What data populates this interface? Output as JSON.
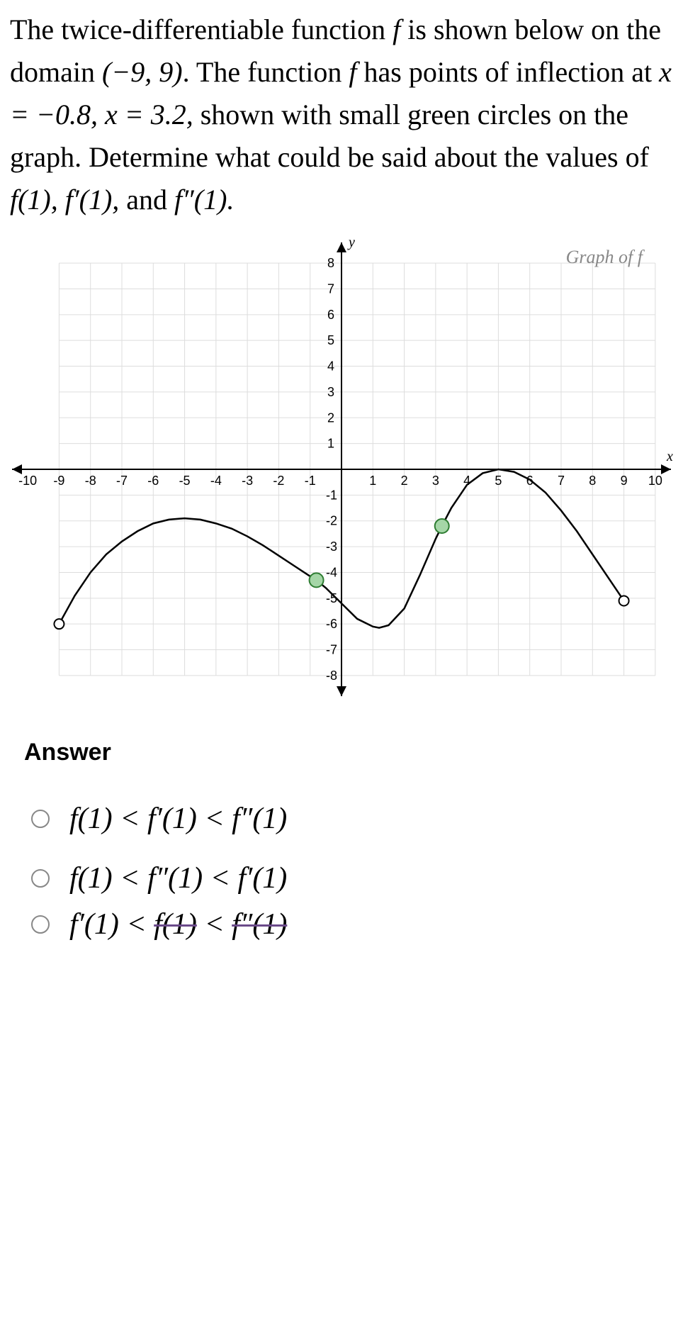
{
  "problem": {
    "line1_pre": "The twice-differentiable function ",
    "line1_f": "f",
    "line1_post": " is shown below on the domain ",
    "domain": "(−9, 9)",
    "line2_pre": ". The function ",
    "line2_f": "f",
    "line2_post": " has points of inflection at ",
    "eq1": "x = −0.8, x = 3.2,",
    "line3": " shown with small green circles on the graph. Determine what could be said about the values of ",
    "vals": "f(1), f′(1),",
    "and": " and ",
    "val3": "f″(1)."
  },
  "graph": {
    "label": "Graph of  f",
    "axis_y_label": "y",
    "axis_x_label": "x",
    "x_ticks": [
      -10,
      -9,
      -8,
      -7,
      -6,
      -5,
      -4,
      -3,
      -2,
      -1,
      1,
      2,
      3,
      4,
      5,
      6,
      7,
      8,
      9,
      10
    ],
    "y_ticks_pos": [
      1,
      2,
      3,
      4,
      5,
      6,
      7,
      8
    ],
    "y_ticks_neg": [
      -1,
      -2,
      -3,
      -4,
      -5,
      -6,
      -7,
      -8
    ],
    "x_range": [
      -10.5,
      10.5
    ],
    "y_range": [
      -8.8,
      8.8
    ],
    "grid_x_min": -9,
    "grid_x_max": 10,
    "grid_y_min": -8,
    "grid_y_max": 8,
    "grid_color": "#dddddd",
    "axis_color": "#000000",
    "bg_color": "#ffffff",
    "curve_color": "#000000",
    "curve_width": 2.5,
    "curve_points": [
      [
        -9,
        -6
      ],
      [
        -8.5,
        -4.9
      ],
      [
        -8,
        -4
      ],
      [
        -7.5,
        -3.3
      ],
      [
        -7,
        -2.8
      ],
      [
        -6.5,
        -2.4
      ],
      [
        -6,
        -2.1
      ],
      [
        -5.5,
        -1.95
      ],
      [
        -5,
        -1.9
      ],
      [
        -4.5,
        -1.95
      ],
      [
        -4,
        -2.1
      ],
      [
        -3.5,
        -2.3
      ],
      [
        -3,
        -2.6
      ],
      [
        -2.5,
        -2.95
      ],
      [
        -2,
        -3.35
      ],
      [
        -1.5,
        -3.75
      ],
      [
        -1,
        -4.15
      ],
      [
        -0.8,
        -4.3
      ],
      [
        -0.5,
        -4.6
      ],
      [
        0,
        -5.2
      ],
      [
        0.5,
        -5.8
      ],
      [
        1,
        -6.1
      ],
      [
        1.2,
        -6.15
      ],
      [
        1.5,
        -6.05
      ],
      [
        2,
        -5.4
      ],
      [
        2.5,
        -4.1
      ],
      [
        3,
        -2.7
      ],
      [
        3.2,
        -2.2
      ],
      [
        3.5,
        -1.5
      ],
      [
        4,
        -0.6
      ],
      [
        4.5,
        -0.15
      ],
      [
        5,
        0
      ],
      [
        5.5,
        -0.1
      ],
      [
        6,
        -0.4
      ],
      [
        6.5,
        -0.9
      ],
      [
        7,
        -1.6
      ],
      [
        7.5,
        -2.4
      ],
      [
        8,
        -3.3
      ],
      [
        8.5,
        -4.2
      ],
      [
        9,
        -5.1
      ]
    ],
    "open_points": [
      {
        "x": -9,
        "y": -6,
        "stroke": "#000000",
        "fill": "#ffffff",
        "r": 7
      },
      {
        "x": 9,
        "y": -5.1,
        "stroke": "#000000",
        "fill": "#ffffff",
        "r": 7
      }
    ],
    "inflection_points": [
      {
        "x": -0.8,
        "y": -4.3,
        "stroke": "#2e7d32",
        "fill": "#a5d6a7",
        "r": 10
      },
      {
        "x": 3.2,
        "y": -2.2,
        "stroke": "#2e7d32",
        "fill": "#a5d6a7",
        "r": 10
      }
    ],
    "tick_font_size": 18
  },
  "answer_section": {
    "heading": "Answer",
    "options": [
      {
        "text": "f(1) < f′(1) < f″(1)"
      },
      {
        "text": "f(1) < f″(1) < f′(1)"
      }
    ],
    "cutoff_option_parts": {
      "a": "f′(1)",
      "lt1": " < ",
      "b": "f(1)",
      "lt2": " < ",
      "c": "f″(1)"
    }
  }
}
